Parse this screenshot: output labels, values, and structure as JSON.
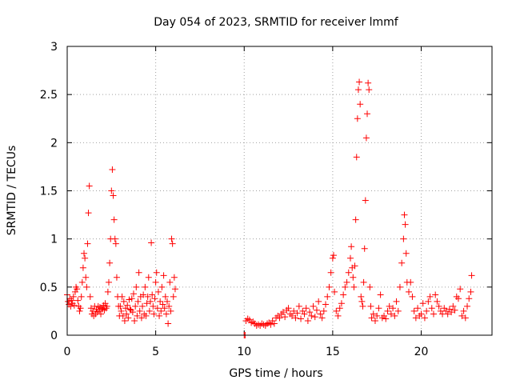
{
  "chart_data": {
    "type": "scatter",
    "title": "Day 054 of 2023, SRMTID for receiver lmmf",
    "xlabel": "GPS time / hours",
    "ylabel": "SRMTID / TECUs",
    "xlim": [
      0,
      24
    ],
    "ylim": [
      0,
      3
    ],
    "xticks": [
      0,
      5,
      10,
      15,
      20
    ],
    "xtick_labels": [
      "0",
      "5",
      "10",
      "15",
      "20"
    ],
    "yticks": [
      0,
      0.5,
      1,
      1.5,
      2,
      2.5,
      3
    ],
    "ytick_labels": [
      "0",
      "0.5",
      "1",
      "1.5",
      "2",
      "2.5",
      "3"
    ],
    "grid": true,
    "marker": "+",
    "series_color": "#ff0000",
    "series": [
      {
        "name": "SRMTID",
        "points": [
          [
            0.0,
            0.42
          ],
          [
            0.05,
            0.35
          ],
          [
            0.1,
            0.32
          ],
          [
            0.15,
            0.38
          ],
          [
            0.2,
            0.3
          ],
          [
            0.25,
            0.36
          ],
          [
            0.3,
            0.33
          ],
          [
            0.35,
            0.4
          ],
          [
            0.4,
            0.31
          ],
          [
            0.45,
            0.45
          ],
          [
            0.5,
            0.5
          ],
          [
            0.55,
            0.48
          ],
          [
            0.6,
            0.36
          ],
          [
            0.65,
            0.3
          ],
          [
            0.7,
            0.25
          ],
          [
            0.75,
            0.28
          ],
          [
            0.8,
            0.4
          ],
          [
            0.85,
            0.55
          ],
          [
            0.9,
            0.7
          ],
          [
            0.95,
            0.85
          ],
          [
            1.0,
            0.8
          ],
          [
            1.05,
            0.6
          ],
          [
            1.1,
            0.5
          ],
          [
            1.15,
            0.95
          ],
          [
            1.2,
            1.27
          ],
          [
            1.25,
            1.55
          ],
          [
            1.3,
            0.4
          ],
          [
            1.35,
            0.28
          ],
          [
            1.4,
            0.22
          ],
          [
            1.45,
            0.25
          ],
          [
            1.5,
            0.2
          ],
          [
            1.55,
            0.3
          ],
          [
            1.6,
            0.22
          ],
          [
            1.65,
            0.27
          ],
          [
            1.7,
            0.24
          ],
          [
            1.75,
            0.3
          ],
          [
            1.8,
            0.25
          ],
          [
            1.85,
            0.29
          ],
          [
            1.9,
            0.22
          ],
          [
            1.95,
            0.28
          ],
          [
            2.0,
            0.27
          ],
          [
            2.05,
            0.31
          ],
          [
            2.1,
            0.26
          ],
          [
            2.15,
            0.33
          ],
          [
            2.2,
            0.28
          ],
          [
            2.25,
            0.3
          ],
          [
            2.3,
            0.45
          ],
          [
            2.35,
            0.55
          ],
          [
            2.4,
            0.75
          ],
          [
            2.45,
            1.0
          ],
          [
            2.5,
            1.5
          ],
          [
            2.55,
            1.72
          ],
          [
            2.6,
            1.45
          ],
          [
            2.65,
            1.2
          ],
          [
            2.7,
            1.0
          ],
          [
            2.75,
            0.95
          ],
          [
            2.8,
            0.6
          ],
          [
            2.85,
            0.4
          ],
          [
            2.9,
            0.3
          ],
          [
            2.95,
            0.2
          ],
          [
            3.0,
            0.3
          ],
          [
            3.05,
            0.25
          ],
          [
            3.1,
            0.4
          ],
          [
            3.15,
            0.2
          ],
          [
            3.2,
            0.35
          ],
          [
            3.25,
            0.15
          ],
          [
            3.3,
            0.28
          ],
          [
            3.35,
            0.22
          ],
          [
            3.4,
            0.31
          ],
          [
            3.45,
            0.18
          ],
          [
            3.5,
            0.37
          ],
          [
            3.55,
            0.27
          ],
          [
            3.6,
            0.26
          ],
          [
            3.65,
            0.38
          ],
          [
            3.7,
            0.24
          ],
          [
            3.75,
            0.43
          ],
          [
            3.8,
            0.15
          ],
          [
            3.85,
            0.3
          ],
          [
            3.9,
            0.5
          ],
          [
            3.95,
            0.2
          ],
          [
            4.0,
            0.35
          ],
          [
            4.05,
            0.65
          ],
          [
            4.1,
            0.25
          ],
          [
            4.15,
            0.4
          ],
          [
            4.2,
            0.18
          ],
          [
            4.25,
            0.3
          ],
          [
            4.3,
            0.42
          ],
          [
            4.35,
            0.22
          ],
          [
            4.4,
            0.5
          ],
          [
            4.45,
            0.2
          ],
          [
            4.5,
            0.33
          ],
          [
            4.55,
            0.4
          ],
          [
            4.6,
            0.6
          ],
          [
            4.65,
            0.25
          ],
          [
            4.7,
            0.35
          ],
          [
            4.75,
            0.96
          ],
          [
            4.8,
            0.42
          ],
          [
            4.85,
            0.3
          ],
          [
            4.9,
            0.22
          ],
          [
            4.95,
            0.38
          ],
          [
            5.0,
            0.55
          ],
          [
            5.05,
            0.65
          ],
          [
            5.1,
            0.28
          ],
          [
            5.15,
            0.45
          ],
          [
            5.2,
            0.2
          ],
          [
            5.25,
            0.35
          ],
          [
            5.3,
            0.25
          ],
          [
            5.35,
            0.5
          ],
          [
            5.4,
            0.32
          ],
          [
            5.45,
            0.62
          ],
          [
            5.5,
            0.28
          ],
          [
            5.55,
            0.4
          ],
          [
            5.6,
            0.22
          ],
          [
            5.65,
            0.35
          ],
          [
            5.7,
            0.12
          ],
          [
            5.75,
            0.3
          ],
          [
            5.8,
            0.55
          ],
          [
            5.85,
            0.25
          ],
          [
            5.9,
            1.0
          ],
          [
            5.95,
            0.95
          ],
          [
            6.0,
            0.4
          ],
          [
            6.05,
            0.6
          ],
          [
            6.1,
            0.48
          ],
          [
            10.0,
            0.0
          ],
          [
            10.05,
            0.0
          ],
          [
            10.1,
            0.15
          ],
          [
            10.2,
            0.17
          ],
          [
            10.3,
            0.16
          ],
          [
            10.4,
            0.13
          ],
          [
            10.5,
            0.14
          ],
          [
            10.6,
            0.12
          ],
          [
            10.7,
            0.1
          ],
          [
            10.8,
            0.11
          ],
          [
            10.9,
            0.1
          ],
          [
            11.0,
            0.12
          ],
          [
            11.1,
            0.11
          ],
          [
            11.2,
            0.1
          ],
          [
            11.3,
            0.12
          ],
          [
            11.4,
            0.13
          ],
          [
            11.5,
            0.11
          ],
          [
            11.6,
            0.15
          ],
          [
            11.7,
            0.12
          ],
          [
            11.8,
            0.18
          ],
          [
            11.9,
            0.2
          ],
          [
            12.0,
            0.18
          ],
          [
            12.1,
            0.22
          ],
          [
            12.2,
            0.24
          ],
          [
            12.3,
            0.19
          ],
          [
            12.4,
            0.26
          ],
          [
            12.5,
            0.28
          ],
          [
            12.6,
            0.22
          ],
          [
            12.7,
            0.2
          ],
          [
            12.8,
            0.25
          ],
          [
            12.9,
            0.18
          ],
          [
            13.0,
            0.23
          ],
          [
            13.1,
            0.3
          ],
          [
            13.2,
            0.17
          ],
          [
            13.3,
            0.25
          ],
          [
            13.4,
            0.22
          ],
          [
            13.5,
            0.28
          ],
          [
            13.6,
            0.15
          ],
          [
            13.7,
            0.24
          ],
          [
            13.8,
            0.2
          ],
          [
            13.9,
            0.3
          ],
          [
            14.0,
            0.19
          ],
          [
            14.1,
            0.26
          ],
          [
            14.2,
            0.35
          ],
          [
            14.3,
            0.22
          ],
          [
            14.4,
            0.18
          ],
          [
            14.5,
            0.25
          ],
          [
            14.6,
            0.32
          ],
          [
            14.7,
            0.4
          ],
          [
            14.8,
            0.5
          ],
          [
            14.9,
            0.65
          ],
          [
            15.0,
            0.8
          ],
          [
            15.05,
            0.83
          ],
          [
            15.1,
            0.45
          ],
          [
            15.2,
            0.25
          ],
          [
            15.3,
            0.2
          ],
          [
            15.4,
            0.28
          ],
          [
            15.5,
            0.33
          ],
          [
            15.6,
            0.42
          ],
          [
            15.7,
            0.5
          ],
          [
            15.8,
            0.55
          ],
          [
            15.9,
            0.65
          ],
          [
            16.0,
            0.8
          ],
          [
            16.05,
            0.92
          ],
          [
            16.1,
            0.7
          ],
          [
            16.15,
            0.6
          ],
          [
            16.2,
            0.5
          ],
          [
            16.25,
            0.72
          ],
          [
            16.3,
            1.2
          ],
          [
            16.35,
            1.85
          ],
          [
            16.4,
            2.25
          ],
          [
            16.45,
            2.55
          ],
          [
            16.5,
            2.63
          ],
          [
            16.55,
            2.4
          ],
          [
            16.6,
            0.4
          ],
          [
            16.65,
            0.35
          ],
          [
            16.7,
            0.3
          ],
          [
            16.75,
            0.55
          ],
          [
            16.8,
            0.9
          ],
          [
            16.85,
            1.4
          ],
          [
            16.9,
            2.05
          ],
          [
            16.95,
            2.3
          ],
          [
            17.0,
            2.62
          ],
          [
            17.05,
            2.55
          ],
          [
            17.1,
            0.5
          ],
          [
            17.15,
            0.3
          ],
          [
            17.2,
            0.18
          ],
          [
            17.3,
            0.22
          ],
          [
            17.4,
            0.15
          ],
          [
            17.5,
            0.2
          ],
          [
            17.6,
            0.28
          ],
          [
            17.7,
            0.42
          ],
          [
            17.8,
            0.18
          ],
          [
            17.9,
            0.2
          ],
          [
            18.0,
            0.17
          ],
          [
            18.1,
            0.25
          ],
          [
            18.2,
            0.3
          ],
          [
            18.3,
            0.22
          ],
          [
            18.4,
            0.28
          ],
          [
            18.5,
            0.2
          ],
          [
            18.6,
            0.35
          ],
          [
            18.7,
            0.25
          ],
          [
            18.8,
            0.5
          ],
          [
            18.9,
            0.75
          ],
          [
            19.0,
            1.0
          ],
          [
            19.05,
            1.25
          ],
          [
            19.1,
            1.15
          ],
          [
            19.15,
            0.85
          ],
          [
            19.2,
            0.55
          ],
          [
            19.3,
            0.45
          ],
          [
            19.4,
            0.55
          ],
          [
            19.5,
            0.4
          ],
          [
            19.6,
            0.25
          ],
          [
            19.7,
            0.18
          ],
          [
            19.8,
            0.28
          ],
          [
            19.9,
            0.2
          ],
          [
            20.0,
            0.22
          ],
          [
            20.1,
            0.33
          ],
          [
            20.2,
            0.18
          ],
          [
            20.3,
            0.25
          ],
          [
            20.4,
            0.35
          ],
          [
            20.5,
            0.4
          ],
          [
            20.6,
            0.28
          ],
          [
            20.7,
            0.22
          ],
          [
            20.8,
            0.42
          ],
          [
            20.9,
            0.35
          ],
          [
            21.0,
            0.3
          ],
          [
            21.1,
            0.25
          ],
          [
            21.2,
            0.22
          ],
          [
            21.3,
            0.28
          ],
          [
            21.4,
            0.25
          ],
          [
            21.5,
            0.22
          ],
          [
            21.6,
            0.27
          ],
          [
            21.7,
            0.24
          ],
          [
            21.8,
            0.3
          ],
          [
            21.9,
            0.26
          ],
          [
            22.0,
            0.4
          ],
          [
            22.1,
            0.38
          ],
          [
            22.2,
            0.48
          ],
          [
            22.3,
            0.2
          ],
          [
            22.4,
            0.25
          ],
          [
            22.5,
            0.18
          ],
          [
            22.6,
            0.3
          ],
          [
            22.7,
            0.38
          ],
          [
            22.8,
            0.45
          ],
          [
            22.85,
            0.62
          ]
        ]
      }
    ]
  }
}
